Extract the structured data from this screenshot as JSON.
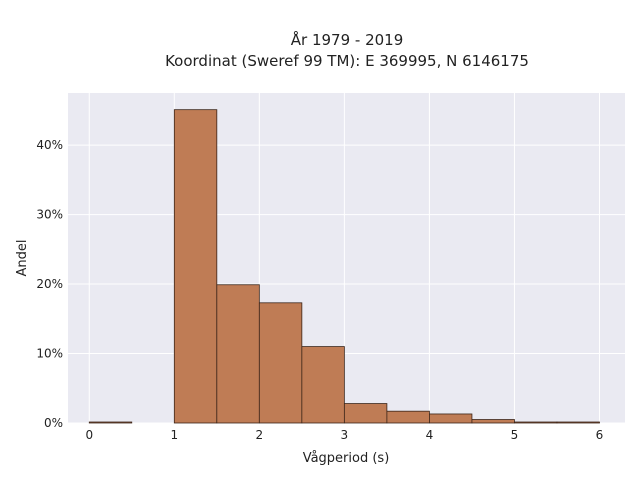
{
  "chart_data": {
    "type": "bar",
    "title_line1": "År 1979 - 2019",
    "title_line2": "Koordinat (Sweref 99 TM): E 369995, N 6146175",
    "xlabel": "Vågperiod (s)",
    "ylabel": "Andel",
    "xlim": [
      -0.25,
      6.3
    ],
    "ylim": [
      0,
      0.475
    ],
    "xticks": [
      0,
      1,
      2,
      3,
      4,
      5,
      6
    ],
    "xtick_labels": [
      "0",
      "1",
      "2",
      "3",
      "4",
      "5",
      "6"
    ],
    "yticks": [
      0,
      0.1,
      0.2,
      0.3,
      0.4
    ],
    "ytick_labels": [
      "0%",
      "10%",
      "20%",
      "30%",
      "40%"
    ],
    "bins": [
      {
        "x0": 0.0,
        "x1": 0.5,
        "value": 0.001
      },
      {
        "x0": 0.5,
        "x1": 1.0,
        "value": 0.0
      },
      {
        "x0": 1.0,
        "x1": 1.5,
        "value": 0.451
      },
      {
        "x0": 1.5,
        "x1": 2.0,
        "value": 0.199
      },
      {
        "x0": 2.0,
        "x1": 2.5,
        "value": 0.173
      },
      {
        "x0": 2.5,
        "x1": 3.0,
        "value": 0.11
      },
      {
        "x0": 3.0,
        "x1": 3.5,
        "value": 0.028
      },
      {
        "x0": 3.5,
        "x1": 4.0,
        "value": 0.017
      },
      {
        "x0": 4.0,
        "x1": 4.5,
        "value": 0.013
      },
      {
        "x0": 4.5,
        "x1": 5.0,
        "value": 0.005
      },
      {
        "x0": 5.0,
        "x1": 5.5,
        "value": 0.0005
      },
      {
        "x0": 5.5,
        "x1": 6.0,
        "value": 0.0005
      }
    ],
    "grid": true,
    "colors": {
      "bar_fill": "#bf7c55",
      "bar_stroke": "#3b2418",
      "plot_bg": "#eaeaf2",
      "grid": "#ffffff"
    }
  }
}
